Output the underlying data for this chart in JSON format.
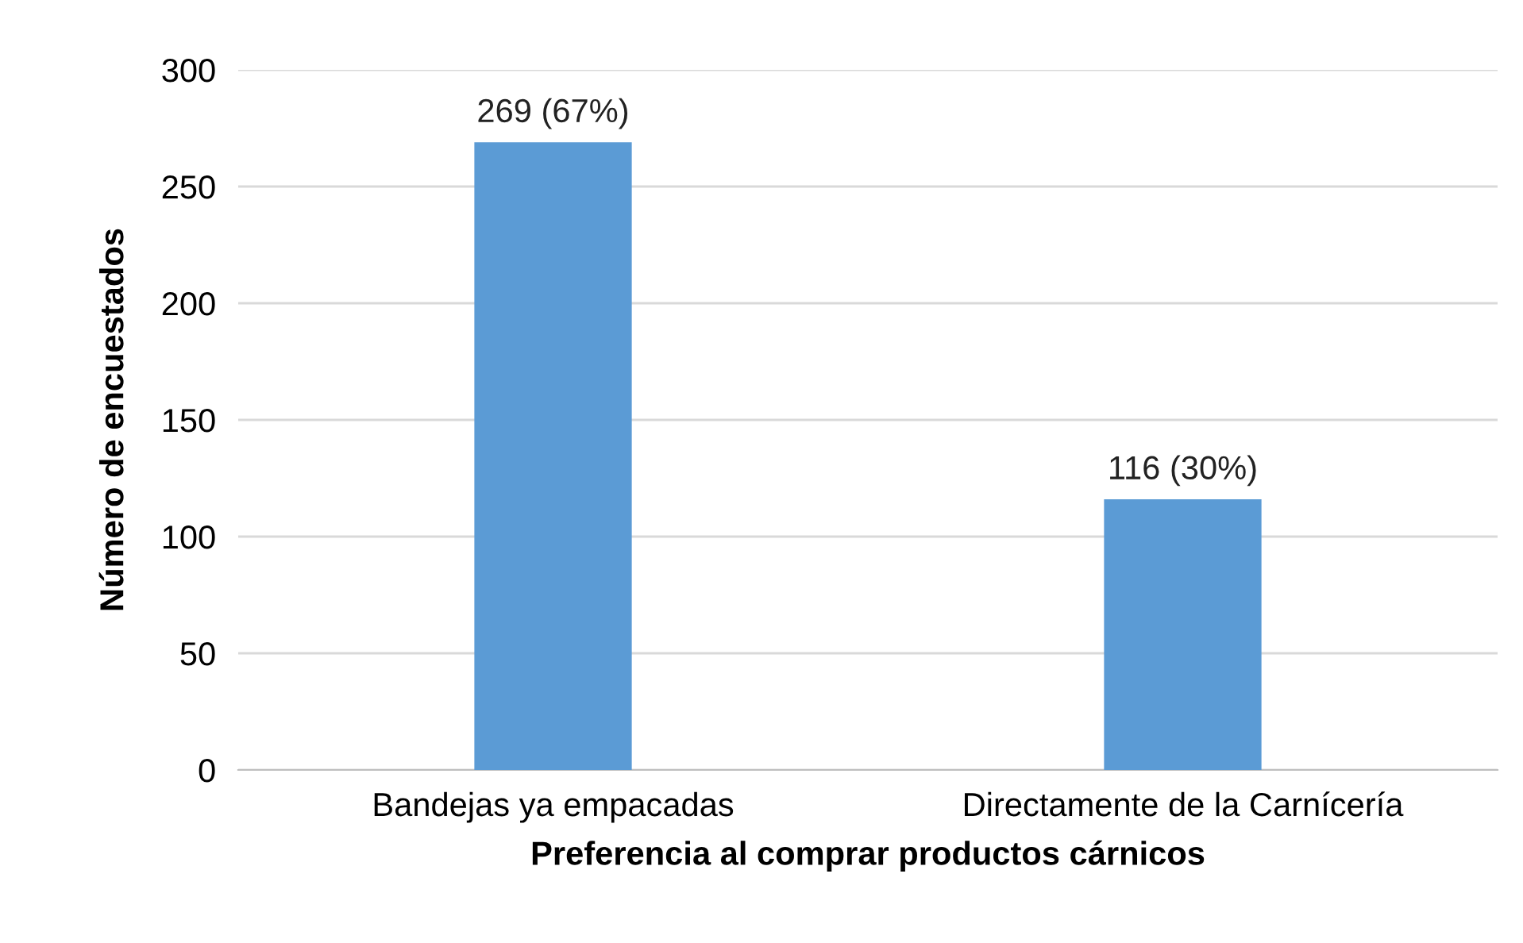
{
  "chart_data": {
    "type": "bar",
    "xlabel": "Preferencia al comprar productos cárnicos",
    "ylabel": "Número de encuestados",
    "categories": [
      "Bandejas ya empacadas",
      "Directamente de la Carnícería"
    ],
    "values": [
      269,
      116
    ],
    "value_labels": [
      "269 (67%)",
      "116 (30%)"
    ],
    "color": "#5b9bd5",
    "ylim": [
      0,
      300
    ],
    "yticks": [
      0,
      50,
      100,
      150,
      200,
      250,
      300
    ],
    "grid": "y",
    "legend": false
  }
}
